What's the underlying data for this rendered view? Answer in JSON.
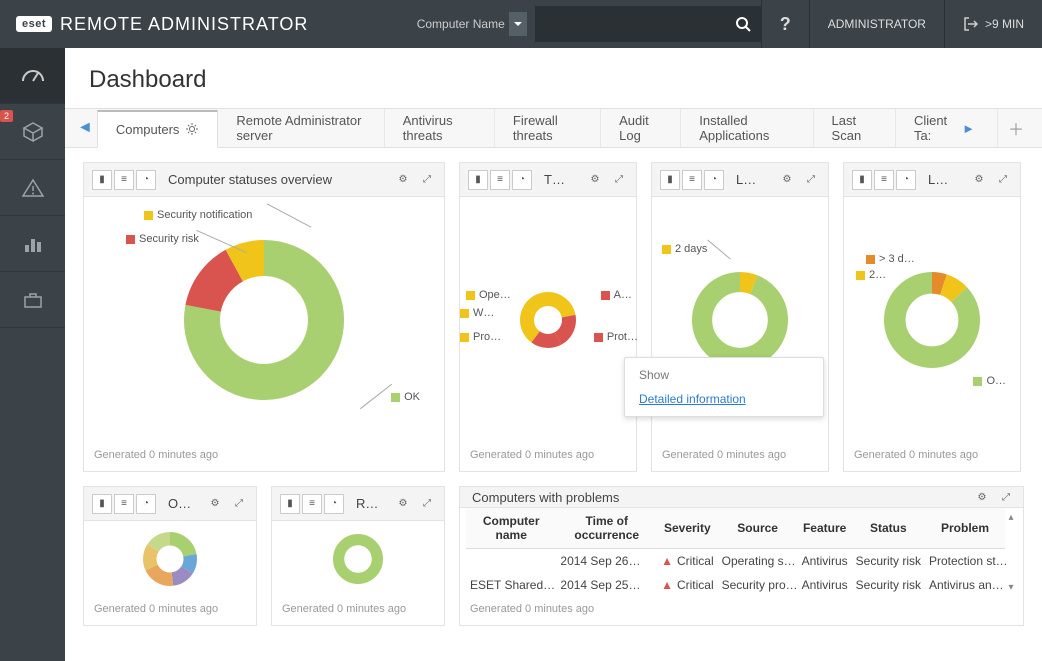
{
  "app": {
    "logo_badge": "eset",
    "logo_text": "REMOTE ADMINISTRATOR",
    "search_label": "Computer Name",
    "help_label": "?",
    "user_label": "ADMINISTRATOR",
    "logout_time": ">9 MIN"
  },
  "sidebar": {
    "badge": "2"
  },
  "page": {
    "title": "Dashboard"
  },
  "tabs": [
    "Computers",
    "Remote Administrator server",
    "Antivirus threats",
    "Firewall threats",
    "Audit Log",
    "Installed Applications",
    "Last Scan",
    "Client Ta:"
  ],
  "cards": {
    "c1": {
      "title": "Computer statuses overview",
      "generated": "Generated 0 minutes ago",
      "donut": {
        "slices": [
          {
            "label": "OK",
            "value": 78,
            "color": "#a8cf70"
          },
          {
            "label": "Security risk",
            "value": 14,
            "color": "#d9534f"
          },
          {
            "label": "Security notification",
            "value": 8,
            "color": "#f0c419"
          }
        ],
        "inner_ratio": 0.55
      }
    },
    "c2": {
      "title": "T…",
      "generated": "Generated 0 minutes ago",
      "donut": {
        "slices": [
          {
            "label": "Ope…",
            "value": 22,
            "color": "#f0c419"
          },
          {
            "label": "A…",
            "value": 20,
            "color": "#d9534f"
          },
          {
            "label": "Prot…",
            "value": 18,
            "color": "#d9534f"
          },
          {
            "label": "Pro…",
            "value": 22,
            "color": "#f0c419"
          },
          {
            "label": "W…",
            "value": 18,
            "color": "#f0c419"
          }
        ],
        "inner_ratio": 0.5
      }
    },
    "c3": {
      "title": "L…",
      "generated": "Generated 0 minutes ago",
      "donut": {
        "slices": [
          {
            "label": "2 days",
            "value": 6,
            "color": "#f0c419"
          },
          {
            "label": "",
            "value": 94,
            "color": "#a8cf70"
          }
        ],
        "inner_ratio": 0.58
      },
      "popover": {
        "show": "Show",
        "link": "Detailed information"
      }
    },
    "c4": {
      "title": "L…",
      "generated": "Generated 0 minutes ago",
      "donut": {
        "slices": [
          {
            "label": "> 3 d…",
            "value": 5,
            "color": "#e58b2c"
          },
          {
            "label": "2…",
            "value": 8,
            "color": "#f0c419"
          },
          {
            "label": "O…",
            "value": 87,
            "color": "#a8cf70"
          }
        ],
        "inner_ratio": 0.55
      }
    },
    "c5": {
      "title": "O…",
      "generated": "Generated 0 minutes ago",
      "donut": {
        "slices": [
          {
            "value": 22,
            "color": "#a8cf70"
          },
          {
            "value": 12,
            "color": "#6aa6d8"
          },
          {
            "value": 14,
            "color": "#9b8bc0"
          },
          {
            "value": 20,
            "color": "#e9a65d"
          },
          {
            "value": 16,
            "color": "#e8c36a"
          },
          {
            "value": 16,
            "color": "#c6d98a"
          }
        ],
        "inner_ratio": 0.5
      }
    },
    "c6": {
      "title": "R…",
      "generated": "Generated 0 minutes ago",
      "donut": {
        "slices": [
          {
            "value": 100,
            "color": "#a8cf70"
          }
        ],
        "inner_ratio": 0.55
      }
    },
    "table": {
      "title": "Computers with problems",
      "generated": "Generated 0 minutes ago",
      "columns": [
        "Computer name",
        "Time of occurrence",
        "Severity",
        "Source",
        "Feature",
        "Status",
        "Problem"
      ],
      "rows": [
        [
          "",
          "2014 Sep 26…",
          "Critical",
          "Operating s…",
          "Antivirus",
          "Security risk",
          "Protection st…"
        ],
        [
          "ESET Shared…",
          "2014 Sep 25…",
          "Critical",
          "Security pro…",
          "Antivirus",
          "Security risk",
          "Antivirus an…"
        ]
      ]
    }
  }
}
